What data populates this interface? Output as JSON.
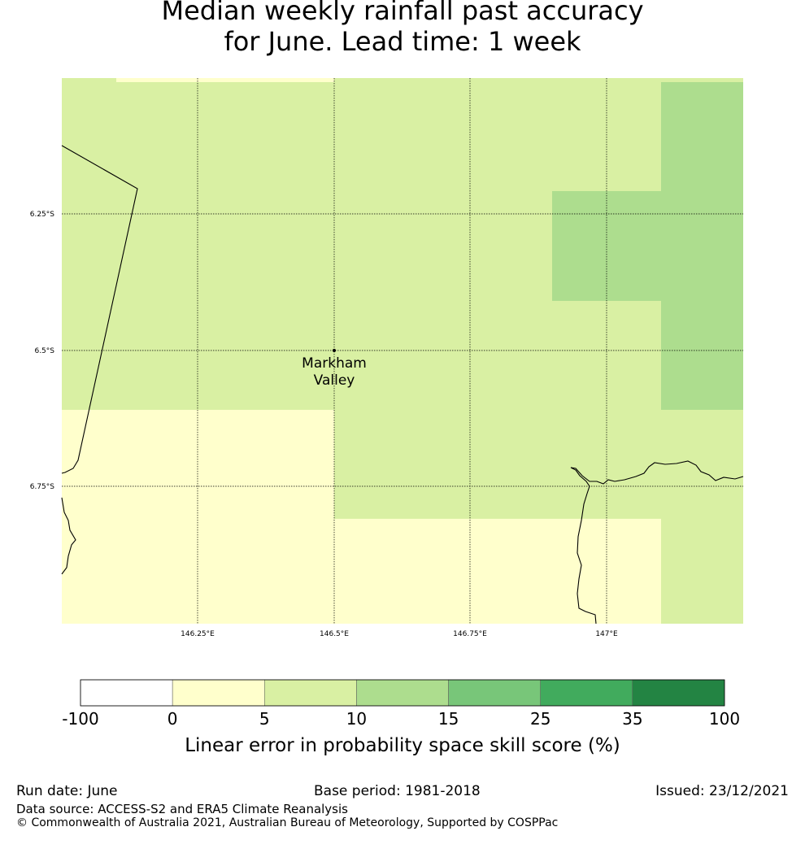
{
  "title": {
    "line1": "Median weekly rainfall past accuracy",
    "line2": "for June. Lead time: 1 week"
  },
  "map": {
    "lat_labels": [
      "6.25°S",
      "6.5°S",
      "6.75°S"
    ],
    "lon_labels": [
      "146.25°E",
      "146.5°E",
      "146.75°E",
      "147°E"
    ],
    "location": {
      "name_line1": "Markham",
      "name_line2": "Valley"
    }
  },
  "colorbar": {
    "label": "Linear error in probability space skill score (%)",
    "ticks": [
      "-100",
      "0",
      "5",
      "10",
      "15",
      "25",
      "35",
      "100"
    ],
    "colors": [
      "#ffffff",
      "#ffffcc",
      "#d9f0a3",
      "#addd8e",
      "#78c679",
      "#41ab5d",
      "#238443"
    ]
  },
  "footer": {
    "run_date": "Run date: June",
    "base_period": "Base period: 1981-2018",
    "issued": "Issued: 23/12/2021",
    "data_source": "Data source: ACCESS-S2 and ERA5 Climate Reanalysis",
    "copyright": "© Commonwealth of Australia 2021, Australian Bureau of Meteorology, Supported by COSPPac"
  }
}
